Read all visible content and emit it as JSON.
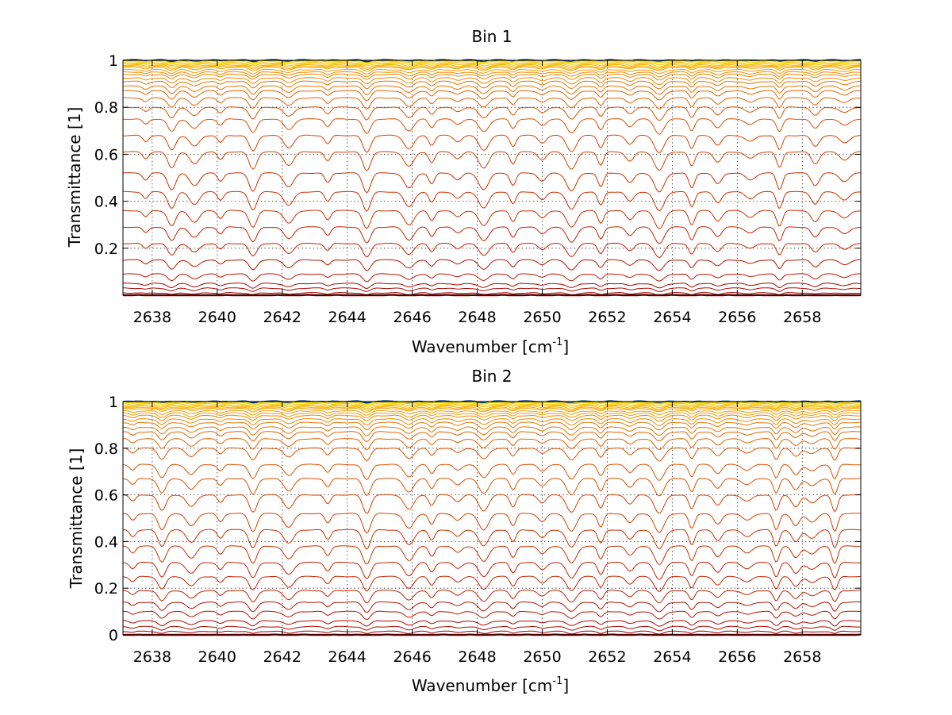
{
  "chart_data": [
    {
      "type": "line",
      "title": "Bin 1",
      "xlabel": "Wavenumber [cm",
      "xlabel_superscript": "-1",
      "xlabel_suffix": "]",
      "ylabel": "Transmittance [1]",
      "xlim": [
        2637.1,
        2659.8
      ],
      "ylim": [
        0.0,
        1.0
      ],
      "xticks": [
        2638,
        2640,
        2642,
        2644,
        2646,
        2648,
        2650,
        2652,
        2654,
        2656,
        2658
      ],
      "xtick_labels": [
        "2638",
        "2640",
        "2642",
        "2644",
        "2646",
        "2648",
        "2650",
        "2652",
        "2654",
        "2656",
        "2658"
      ],
      "yticks": [
        0.2,
        0.4,
        0.6,
        0.8,
        1.0
      ],
      "ytick_labels": [
        "0.2",
        "0.4",
        "0.6",
        "0.8",
        "1"
      ],
      "grid": true,
      "line_levels": [
        1.0,
        0.998,
        0.995,
        0.99,
        0.985,
        0.98,
        0.975,
        0.97,
        0.96,
        0.95,
        0.94,
        0.925,
        0.91,
        0.89,
        0.87,
        0.84,
        0.8,
        0.75,
        0.68,
        0.61,
        0.52,
        0.44,
        0.36,
        0.29,
        0.22,
        0.15,
        0.09,
        0.05,
        0.03,
        0.01,
        0.0
      ],
      "absorption_lines": [
        2637.8,
        2638.6,
        2639.3,
        2640.1,
        2641.1,
        2642.2,
        2643.4,
        2644.6,
        2645.9,
        2646.6,
        2647.4,
        2648.2,
        2649.1,
        2650.0,
        2650.9,
        2651.8,
        2652.7,
        2653.6,
        2654.6,
        2655.4,
        2656.4,
        2657.3,
        2658.4,
        2659.3
      ],
      "colors": [
        "#00338a",
        "#f2d800",
        "#f5c400",
        "#f5b000",
        "#f39c00",
        "#f08800",
        "#eb7400",
        "#e56200",
        "#de5000",
        "#d64000",
        "#cd3000",
        "#c42200",
        "#b81400",
        "#aa0800",
        "#9b0000"
      ]
    },
    {
      "type": "line",
      "title": "Bin 2",
      "xlabel": "Wavenumber [cm",
      "xlabel_superscript": "-1",
      "xlabel_suffix": "]",
      "ylabel": "Transmittance [1]",
      "xlim": [
        2637.1,
        2659.8
      ],
      "ylim": [
        0.0,
        1.0
      ],
      "xticks": [
        2638,
        2640,
        2642,
        2644,
        2646,
        2648,
        2650,
        2652,
        2654,
        2656,
        2658
      ],
      "xtick_labels": [
        "2638",
        "2640",
        "2642",
        "2644",
        "2646",
        "2648",
        "2650",
        "2652",
        "2654",
        "2656",
        "2658"
      ],
      "yticks": [
        0.0,
        0.2,
        0.4,
        0.6,
        0.8,
        1.0
      ],
      "ytick_labels": [
        "0",
        "0.2",
        "0.4",
        "0.6",
        "0.8",
        "1"
      ],
      "grid": true,
      "line_levels": [
        1.0,
        0.998,
        0.995,
        0.99,
        0.985,
        0.98,
        0.975,
        0.97,
        0.96,
        0.95,
        0.94,
        0.925,
        0.91,
        0.89,
        0.87,
        0.84,
        0.8,
        0.73,
        0.67,
        0.6,
        0.52,
        0.45,
        0.38,
        0.31,
        0.25,
        0.19,
        0.14,
        0.1,
        0.06,
        0.035,
        0.015,
        0.0
      ],
      "absorption_lines": [
        2637.4,
        2638.3,
        2639.2,
        2640.1,
        2641.1,
        2642.2,
        2643.4,
        2644.6,
        2645.9,
        2646.6,
        2647.4,
        2648.2,
        2649.1,
        2650.0,
        2650.9,
        2651.8,
        2652.7,
        2653.6,
        2654.6,
        2655.4,
        2656.3,
        2657.2,
        2657.8,
        2658.3,
        2659.0
      ],
      "colors": [
        "#00338a",
        "#f2d800",
        "#f5c400",
        "#f5b000",
        "#f39c00",
        "#f08800",
        "#eb7400",
        "#e56200",
        "#de5000",
        "#d64000",
        "#cd3000",
        "#c42200",
        "#b81400",
        "#aa0800",
        "#9b0000"
      ]
    }
  ]
}
